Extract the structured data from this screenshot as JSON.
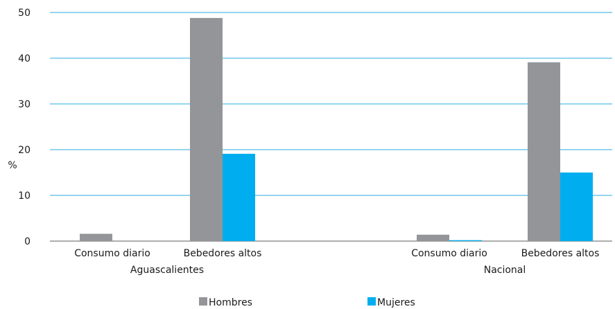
{
  "chart_data": {
    "type": "bar",
    "ylabel": "%",
    "ylim": [
      0,
      50
    ],
    "yticks": [
      0,
      10,
      20,
      30,
      40,
      50
    ],
    "grid": true,
    "legend_position": "bottom",
    "groups": [
      "Aguascalientes",
      "Nacional"
    ],
    "categories": [
      "Consumo diario",
      "Bebedores altos",
      "Consumo diario",
      "Bebedores altos"
    ],
    "series": [
      {
        "name": "Hombres",
        "color": "#939598",
        "values": [
          1.6,
          48.8,
          1.4,
          39.1
        ]
      },
      {
        "name": "Mujeres",
        "color": "#00aeef",
        "values": [
          0.0,
          19.1,
          0.2,
          15.0
        ]
      }
    ]
  }
}
